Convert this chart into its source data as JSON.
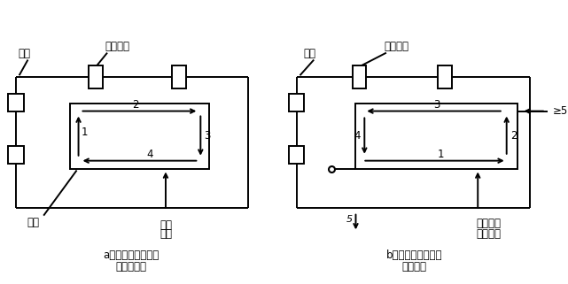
{
  "fig_width": 6.41,
  "fig_height": 3.21,
  "dpi": 100,
  "bg_color": "#ffffff",
  "line_color": "#000000",
  "caption_a": "a）从端面开始加工",
  "caption_a2": "（不正确）",
  "caption_b": "b）从预孔开始加工",
  "caption_b2": "（正确）",
  "label_gongjian_a": "工件",
  "label_gongjianjuju_a": "工件夹具",
  "label_bianxing": "变形",
  "label_houdu1": "厚度",
  "label_houdu2": "不够",
  "label_gongjian_b": "工件",
  "label_gongjianjuju_b": "工件夹具",
  "label_likai1": "离开工件",
  "label_likai2": "夹具方向",
  "label_ge5": "≥5"
}
